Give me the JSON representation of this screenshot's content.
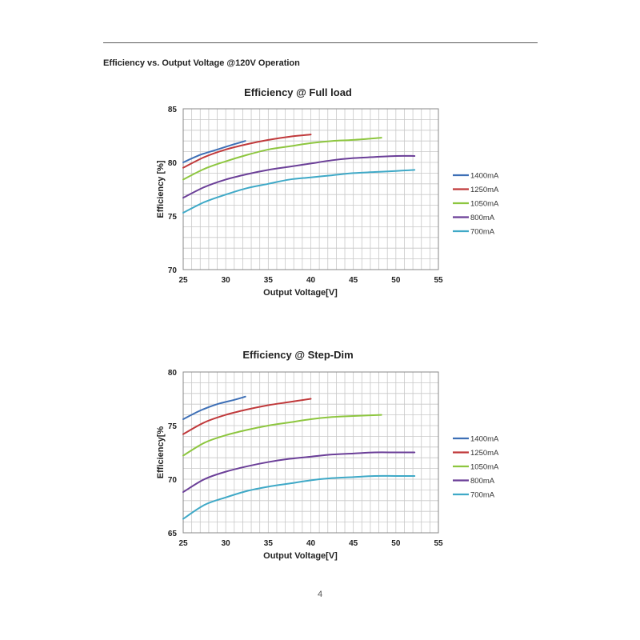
{
  "header": {
    "title": "Efficiency vs. Output Voltage @120V Operation"
  },
  "footer": {
    "page_number": "4"
  },
  "colors": {
    "1400mA": "#3d6fb6",
    "1250mA": "#c0393b",
    "1050mA": "#8dc63f",
    "800mA": "#6b3f98",
    "700mA": "#3fa9c7",
    "grid": "#c8c8c8"
  },
  "chart_data": [
    {
      "type": "line",
      "title": "Efficiency @ Full load",
      "xlabel": "Output Voltage[V]",
      "ylabel": "Efficiency [%]",
      "xlim": [
        25,
        55
      ],
      "ylim": [
        70,
        85
      ],
      "xticks": [
        25,
        30,
        35,
        40,
        45,
        50,
        55
      ],
      "yticks": [
        70,
        75,
        80,
        85
      ],
      "grid": true,
      "legend_position": "right",
      "series": [
        {
          "name": "1400mA",
          "x": [
            25,
            27,
            29,
            31,
            32.3
          ],
          "y": [
            80.0,
            80.7,
            81.2,
            81.7,
            82.0
          ]
        },
        {
          "name": "1250mA",
          "x": [
            25,
            27.5,
            30,
            32.5,
            35,
            37.5,
            40
          ],
          "y": [
            79.5,
            80.5,
            81.2,
            81.7,
            82.1,
            82.4,
            82.6
          ]
        },
        {
          "name": "1050mA",
          "x": [
            25,
            27.5,
            30,
            32.5,
            35,
            37.5,
            40,
            42.5,
            45,
            48.3
          ],
          "y": [
            78.4,
            79.4,
            80.1,
            80.7,
            81.2,
            81.5,
            81.8,
            82.0,
            82.1,
            82.3
          ]
        },
        {
          "name": "800mA",
          "x": [
            25,
            27.5,
            30,
            32.5,
            35,
            37.5,
            40,
            42.5,
            45,
            47.5,
            50,
            52.2
          ],
          "y": [
            76.7,
            77.7,
            78.4,
            78.9,
            79.3,
            79.6,
            79.9,
            80.2,
            80.4,
            80.5,
            80.6,
            80.6
          ]
        },
        {
          "name": "700mA",
          "x": [
            25,
            27.5,
            30,
            32.5,
            35,
            37.5,
            40,
            42.5,
            45,
            47.5,
            50,
            52.2
          ],
          "y": [
            75.3,
            76.3,
            77.0,
            77.6,
            78.0,
            78.4,
            78.6,
            78.8,
            79.0,
            79.1,
            79.2,
            79.3
          ]
        }
      ]
    },
    {
      "type": "line",
      "title": "Efficiency @ Step-Dim",
      "xlabel": "Output Voltage[V]",
      "ylabel": "Efficiency[%",
      "xlim": [
        25,
        55
      ],
      "ylim": [
        65,
        80
      ],
      "xticks": [
        25,
        30,
        35,
        40,
        45,
        50,
        55
      ],
      "yticks": [
        65,
        70,
        75,
        80
      ],
      "grid": true,
      "legend_position": "right",
      "series": [
        {
          "name": "1400mA",
          "x": [
            25,
            27,
            29,
            31,
            32.3
          ],
          "y": [
            75.6,
            76.4,
            77.0,
            77.4,
            77.7
          ]
        },
        {
          "name": "1250mA",
          "x": [
            25,
            27.5,
            30,
            32.5,
            35,
            37.5,
            40
          ],
          "y": [
            74.2,
            75.3,
            76.0,
            76.5,
            76.9,
            77.2,
            77.5
          ]
        },
        {
          "name": "1050mA",
          "x": [
            25,
            27.5,
            30,
            32.5,
            35,
            37.5,
            40,
            42.5,
            45,
            48.3
          ],
          "y": [
            72.2,
            73.4,
            74.1,
            74.6,
            75.0,
            75.3,
            75.6,
            75.8,
            75.9,
            76.0
          ]
        },
        {
          "name": "800mA",
          "x": [
            25,
            27.5,
            30,
            32.5,
            35,
            37.5,
            40,
            42.5,
            45,
            47.5,
            50,
            52.2
          ],
          "y": [
            68.8,
            70.0,
            70.7,
            71.2,
            71.6,
            71.9,
            72.1,
            72.3,
            72.4,
            72.5,
            72.5,
            72.5
          ]
        },
        {
          "name": "700mA",
          "x": [
            25,
            27.5,
            30,
            32.5,
            35,
            37.5,
            40,
            42.5,
            45,
            47.5,
            50,
            52.2
          ],
          "y": [
            66.3,
            67.6,
            68.3,
            68.9,
            69.3,
            69.6,
            69.9,
            70.1,
            70.2,
            70.3,
            70.3,
            70.3
          ]
        }
      ]
    }
  ]
}
